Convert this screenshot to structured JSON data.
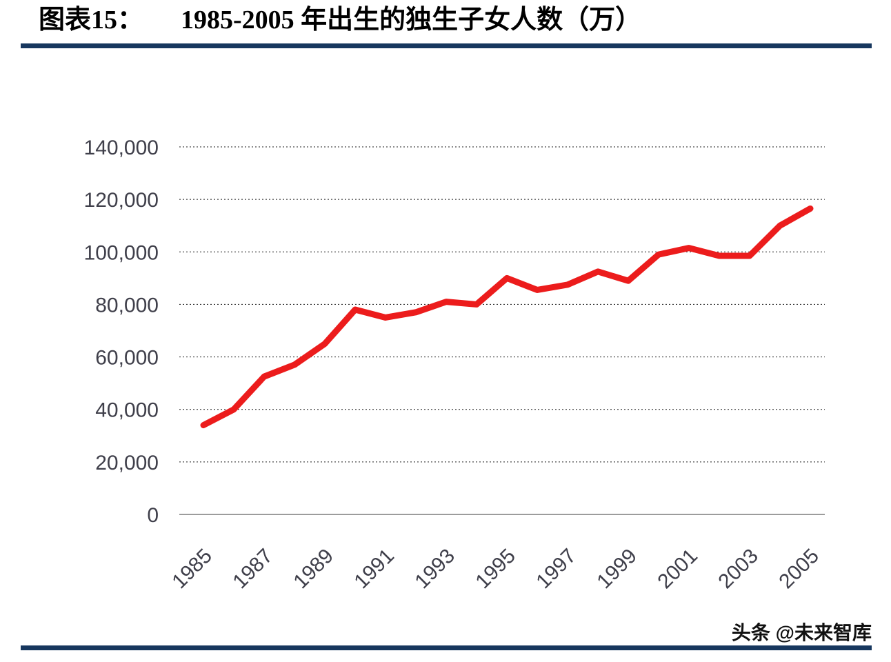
{
  "header": {
    "label": "图表15：",
    "title": "1985-2005 年出生的独生子女人数（万）"
  },
  "footer": {
    "watermark": "头条 @未来智库"
  },
  "chart_data": {
    "type": "line",
    "title": "1985-2005 年出生的独生子女人数（万）",
    "x": [
      1985,
      1986,
      1987,
      1988,
      1989,
      1990,
      1991,
      1992,
      1993,
      1994,
      1995,
      1996,
      1997,
      1998,
      1999,
      2000,
      2001,
      2002,
      2003,
      2004,
      2005
    ],
    "series": [
      {
        "name": "出生的独生子女人数",
        "values": [
          34000,
          40000,
          52500,
          57000,
          65000,
          78000,
          75000,
          77000,
          81000,
          80000,
          90000,
          85500,
          87500,
          92500,
          89000,
          99000,
          101500,
          98500,
          98500,
          110000,
          116500
        ]
      }
    ],
    "x_tick_labels": [
      "1985",
      "1987",
      "1989",
      "1991",
      "1993",
      "1995",
      "1997",
      "1999",
      "2001",
      "2003",
      "2005"
    ],
    "y_ticks": [
      0,
      20000,
      40000,
      60000,
      80000,
      100000,
      120000,
      140000
    ],
    "y_tick_labels": [
      "0",
      "20,000",
      "40,000",
      "60,000",
      "80,000",
      "100,000",
      "120,000",
      "140,000"
    ],
    "ylim": [
      0,
      140000
    ],
    "line_color": "#ec1c1c",
    "grid": "horizontal-dotted",
    "legend": "none"
  }
}
